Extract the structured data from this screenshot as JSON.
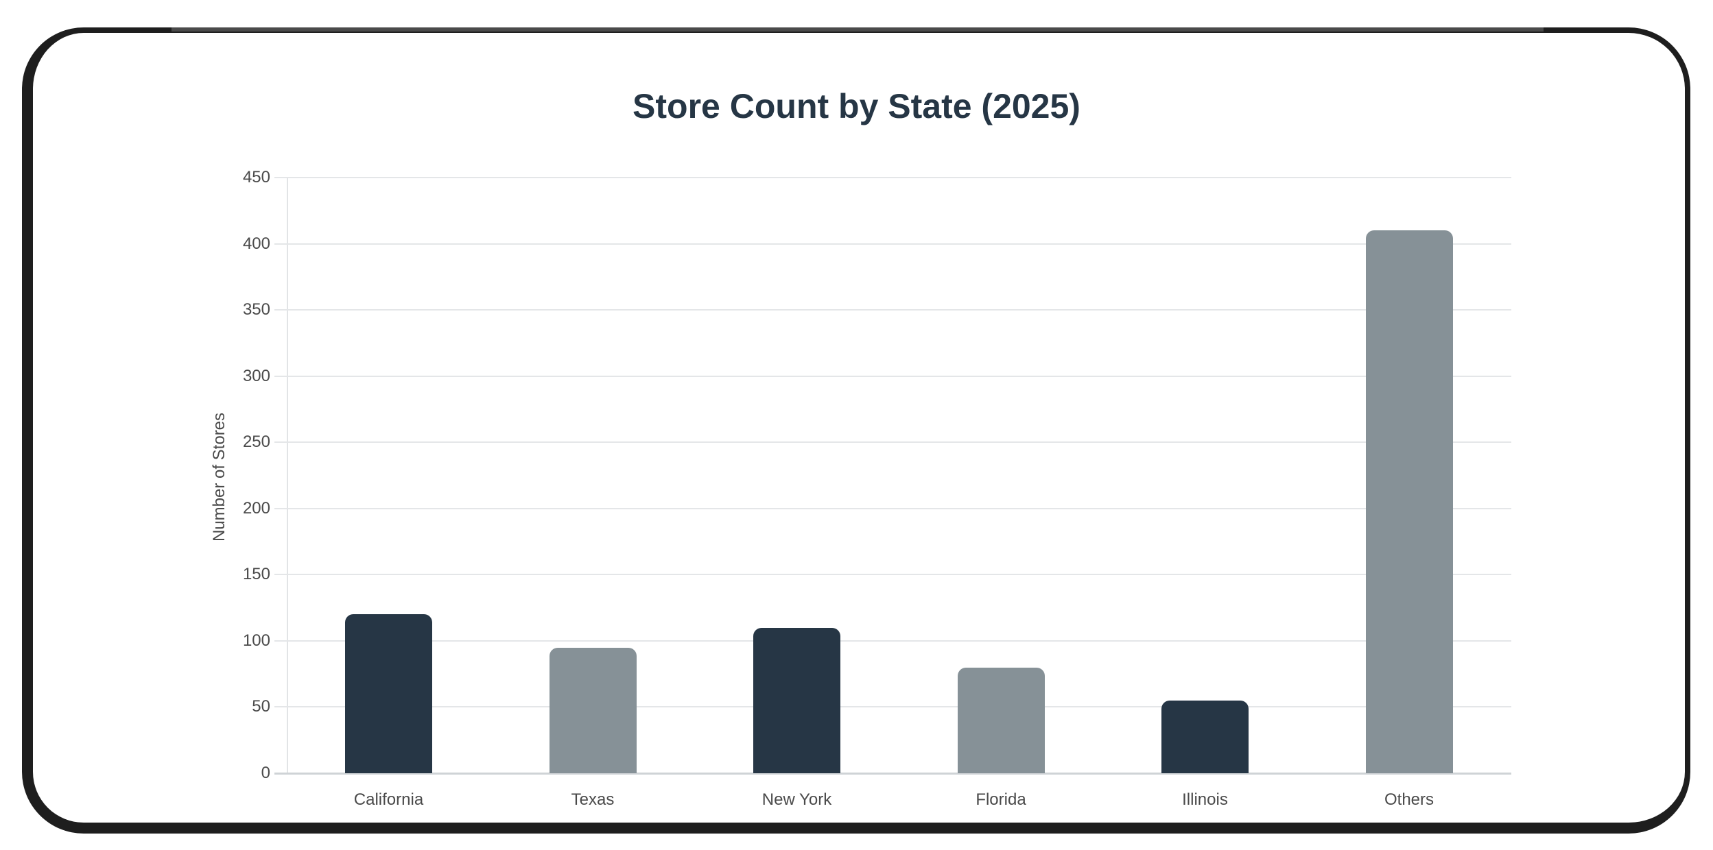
{
  "chart_data": {
    "type": "bar",
    "title": "Store Count by State (2025)",
    "xlabel": "",
    "ylabel": "Number of Stores",
    "categories": [
      "California",
      "Texas",
      "New York",
      "Florida",
      "Illinois",
      "Others"
    ],
    "values": [
      120,
      95,
      110,
      80,
      55,
      410
    ],
    "bar_colors": [
      "#263645",
      "#869197",
      "#263645",
      "#869197",
      "#263645",
      "#869197"
    ],
    "ylim": [
      0,
      450
    ],
    "yticks": [
      0,
      50,
      100,
      150,
      200,
      250,
      300,
      350,
      400,
      450
    ],
    "grid": true,
    "legend": null
  },
  "colors": {
    "primary": "#263645",
    "secondary": "#869197",
    "title": "#263645",
    "axis_text": "#4a4a4a",
    "grid": "#e4e6e8"
  },
  "labels": {
    "title": "Store Count by State (2025)",
    "y_axis_title": "Number of Stores",
    "yticks": [
      "0",
      "50",
      "100",
      "150",
      "200",
      "250",
      "300",
      "350",
      "400",
      "450"
    ],
    "categories": [
      "California",
      "Texas",
      "New York",
      "Florida",
      "Illinois",
      "Others"
    ]
  }
}
